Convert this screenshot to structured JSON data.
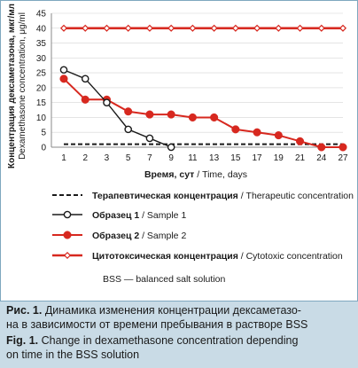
{
  "chart_data": {
    "type": "line",
    "categories": [
      "1",
      "2",
      "3",
      "5",
      "7",
      "9",
      "11",
      "13",
      "15",
      "17",
      "19",
      "21",
      "24",
      "27"
    ],
    "xlabel_bold": "Время, сут",
    "xlabel_rest": " / Time, days",
    "ylabel_line1": "Концентрация дексаметазона, мкг/мл",
    "ylabel_line2": "Dexamethasone concentration, μg/ml",
    "ylim": [
      0,
      45
    ],
    "yticks": [
      0,
      5,
      10,
      15,
      20,
      25,
      30,
      35,
      40,
      45
    ],
    "series": [
      {
        "key": "therapeutic",
        "name_bold": "Терапевтическая концентрация",
        "name_rest": " / Therapeutic concentration",
        "style": "dashed",
        "color": "#1a1a1a",
        "x": [
          "1",
          "2",
          "3",
          "5",
          "7",
          "9",
          "11",
          "13",
          "15",
          "17",
          "19",
          "21",
          "24",
          "27"
        ],
        "values": [
          1,
          1,
          1,
          1,
          1,
          1,
          1,
          1,
          1,
          1,
          1,
          1,
          1,
          1
        ]
      },
      {
        "key": "sample1",
        "name_bold": "Образец 1",
        "name_rest": " / Sample 1",
        "style": "line-open-circle",
        "color": "#1a1a1a",
        "x": [
          "1",
          "2",
          "3",
          "5",
          "7",
          "9"
        ],
        "values": [
          26,
          23,
          15,
          6,
          3,
          0
        ]
      },
      {
        "key": "sample2",
        "name_bold": "Образец 2",
        "name_rest": " / Sample 2",
        "style": "line-filled-circle",
        "color": "#d7281f",
        "x": [
          "1",
          "2",
          "3",
          "5",
          "7",
          "9",
          "11",
          "13",
          "15",
          "17",
          "19",
          "21",
          "24",
          "27"
        ],
        "values": [
          23,
          16,
          16,
          12,
          11,
          11,
          10,
          10,
          6,
          5,
          4,
          2,
          0,
          0
        ]
      },
      {
        "key": "cytotoxic",
        "name_bold": "Цитотоксическая концентрация",
        "name_rest": " / Cytotoxic concentration",
        "style": "line-diamond",
        "color": "#d7281f",
        "x": [
          "1",
          "2",
          "3",
          "5",
          "7",
          "9",
          "11",
          "13",
          "15",
          "17",
          "19",
          "21",
          "24",
          "27"
        ],
        "values": [
          40,
          40,
          40,
          40,
          40,
          40,
          40,
          40,
          40,
          40,
          40,
          40,
          40,
          40
        ]
      }
    ],
    "note": "BSS — balanced salt solution",
    "grid": true
  },
  "caption": {
    "ru_lead": "Рис. 1.",
    "ru_line1": " Динамика изменения концентрации дексаметазо-",
    "ru_line2": "на в зависимости от времени пребывания в растворе BSS",
    "en_lead": "Fig. 1.",
    "en_line1": " Change in dexamethasone concentration depending",
    "en_line2": "on time in the BSS solution"
  }
}
